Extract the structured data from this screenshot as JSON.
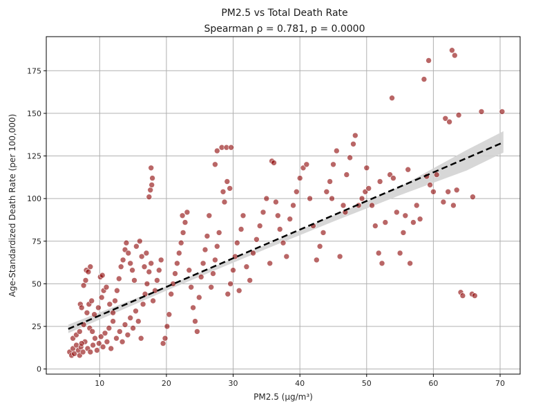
{
  "chart_data": {
    "type": "scatter",
    "title": "PM2.5 vs Total Death Rate",
    "subtitle": "Spearman ρ = 0.781, p = 0.0000",
    "xlabel": "PM2.5 (μg/m³)",
    "ylabel": "Age-Standardized Death Rate (per 100,000)",
    "xlim": [
      2,
      73
    ],
    "ylim": [
      -3,
      195
    ],
    "xticks": [
      10,
      20,
      30,
      40,
      50,
      60,
      70
    ],
    "yticks": [
      0,
      25,
      50,
      75,
      100,
      125,
      150,
      175
    ],
    "grid": true,
    "point_color": "#8b0000",
    "trend_color": "#000000",
    "band_color": "#d3d3d3",
    "trend_line": {
      "x": [
        5.3,
        70.5
      ],
      "y": [
        23.5,
        133
      ]
    },
    "confidence_band": {
      "x": [
        5.3,
        20,
        35,
        45,
        55,
        65,
        70.5
      ],
      "lower": [
        21.0,
        46.0,
        70.5,
        86.5,
        102.0,
        116.5,
        127.0
      ],
      "upper": [
        26.0,
        48.5,
        73.0,
        90.0,
        107.0,
        128.5,
        139.5
      ]
    },
    "series": [
      {
        "points": [
          [
            5.5,
            10
          ],
          [
            5.8,
            8
          ],
          [
            6.0,
            12
          ],
          [
            6.2,
            9
          ],
          [
            6.5,
            14
          ],
          [
            6.8,
            11
          ],
          [
            7.0,
            8
          ],
          [
            7.2,
            13
          ],
          [
            7.5,
            10
          ],
          [
            7.8,
            16
          ],
          [
            6.0,
            18
          ],
          [
            6.5,
            20
          ],
          [
            7.0,
            22
          ],
          [
            7.3,
            15
          ],
          [
            7.6,
            26
          ],
          [
            7.1,
            38
          ],
          [
            7.3,
            36
          ],
          [
            7.6,
            49
          ],
          [
            7.9,
            52
          ],
          [
            8.0,
            58
          ],
          [
            8.3,
            57
          ],
          [
            8.6,
            60
          ],
          [
            8.1,
            33
          ],
          [
            8.4,
            38
          ],
          [
            8.8,
            40
          ],
          [
            8.5,
            24
          ],
          [
            8.9,
            22
          ],
          [
            8.2,
            12
          ],
          [
            8.6,
            10
          ],
          [
            9.0,
            14
          ],
          [
            9.3,
            18
          ],
          [
            9.6,
            11
          ],
          [
            9.9,
            15
          ],
          [
            10.2,
            19
          ],
          [
            10.5,
            13
          ],
          [
            10.8,
            21
          ],
          [
            11.1,
            16
          ],
          [
            11.4,
            24
          ],
          [
            11.7,
            12
          ],
          [
            12.0,
            28
          ],
          [
            9.2,
            32
          ],
          [
            9.8,
            36
          ],
          [
            10.3,
            42
          ],
          [
            10.6,
            46
          ],
          [
            10.1,
            54
          ],
          [
            10.4,
            55
          ],
          [
            11.0,
            48
          ],
          [
            11.5,
            38
          ],
          [
            12.0,
            33
          ],
          [
            12.3,
            40
          ],
          [
            12.6,
            46
          ],
          [
            12.9,
            53
          ],
          [
            13.2,
            60
          ],
          [
            13.5,
            64
          ],
          [
            13.8,
            70
          ],
          [
            14.0,
            74
          ],
          [
            14.3,
            68
          ],
          [
            14.6,
            62
          ],
          [
            14.9,
            58
          ],
          [
            15.2,
            52
          ],
          [
            12.5,
            18
          ],
          [
            13.0,
            22
          ],
          [
            13.4,
            16
          ],
          [
            13.8,
            26
          ],
          [
            14.2,
            20
          ],
          [
            14.6,
            30
          ],
          [
            15.0,
            24
          ],
          [
            15.4,
            34
          ],
          [
            15.8,
            28
          ],
          [
            16.2,
            18
          ],
          [
            16.5,
            38
          ],
          [
            16.8,
            44
          ],
          [
            17.1,
            50
          ],
          [
            17.4,
            57
          ],
          [
            17.7,
            62
          ],
          [
            17.4,
            101
          ],
          [
            17.6,
            105
          ],
          [
            17.8,
            108
          ],
          [
            17.9,
            112
          ],
          [
            17.7,
            118
          ],
          [
            15.5,
            72
          ],
          [
            16.0,
            75
          ],
          [
            16.3,
            66
          ],
          [
            16.7,
            60
          ],
          [
            17.0,
            68
          ],
          [
            18.0,
            40
          ],
          [
            18.3,
            46
          ],
          [
            18.6,
            52
          ],
          [
            18.9,
            58
          ],
          [
            19.2,
            64
          ],
          [
            19.5,
            15
          ],
          [
            19.8,
            18
          ],
          [
            20.1,
            25
          ],
          [
            20.4,
            32
          ],
          [
            20.7,
            44
          ],
          [
            21.0,
            50
          ],
          [
            21.3,
            56
          ],
          [
            21.6,
            62
          ],
          [
            21.9,
            68
          ],
          [
            22.2,
            74
          ],
          [
            22.5,
            80
          ],
          [
            22.8,
            86
          ],
          [
            22.4,
            90
          ],
          [
            23.1,
            92
          ],
          [
            23.4,
            58
          ],
          [
            23.7,
            48
          ],
          [
            24.0,
            36
          ],
          [
            24.3,
            28
          ],
          [
            24.6,
            22
          ],
          [
            24.9,
            42
          ],
          [
            25.2,
            54
          ],
          [
            25.5,
            62
          ],
          [
            25.8,
            70
          ],
          [
            26.1,
            78
          ],
          [
            26.4,
            90
          ],
          [
            26.7,
            48
          ],
          [
            27.0,
            56
          ],
          [
            27.3,
            64
          ],
          [
            27.6,
            72
          ],
          [
            27.9,
            80
          ],
          [
            27.3,
            120
          ],
          [
            27.6,
            128
          ],
          [
            28.3,
            130
          ],
          [
            29.0,
            130
          ],
          [
            29.7,
            130
          ],
          [
            28.5,
            104
          ],
          [
            29.1,
            110
          ],
          [
            29.5,
            106
          ],
          [
            28.7,
            98
          ],
          [
            29.2,
            44
          ],
          [
            29.6,
            50
          ],
          [
            30.0,
            58
          ],
          [
            30.3,
            66
          ],
          [
            30.6,
            74
          ],
          [
            30.9,
            46
          ],
          [
            31.2,
            82
          ],
          [
            31.5,
            90
          ],
          [
            32.0,
            60
          ],
          [
            32.5,
            52
          ],
          [
            33.0,
            68
          ],
          [
            33.5,
            76
          ],
          [
            34.0,
            84
          ],
          [
            34.5,
            92
          ],
          [
            35.0,
            100
          ],
          [
            35.5,
            62
          ],
          [
            35.8,
            122
          ],
          [
            36.1,
            121
          ],
          [
            36.4,
            98
          ],
          [
            36.7,
            90
          ],
          [
            37.0,
            82
          ],
          [
            37.5,
            74
          ],
          [
            38.0,
            66
          ],
          [
            38.5,
            88
          ],
          [
            39.0,
            96
          ],
          [
            39.5,
            104
          ],
          [
            40.0,
            112
          ],
          [
            40.5,
            118
          ],
          [
            41.0,
            120
          ],
          [
            41.5,
            100
          ],
          [
            42.0,
            84
          ],
          [
            42.5,
            64
          ],
          [
            43.0,
            72
          ],
          [
            43.5,
            80
          ],
          [
            44.0,
            104
          ],
          [
            44.5,
            110
          ],
          [
            45.0,
            120
          ],
          [
            45.5,
            128
          ],
          [
            46.0,
            66
          ],
          [
            46.5,
            96
          ],
          [
            47.0,
            114
          ],
          [
            47.5,
            124
          ],
          [
            48.0,
            132
          ],
          [
            48.3,
            137
          ],
          [
            48.8,
            96
          ],
          [
            49.3,
            100
          ],
          [
            49.8,
            104
          ],
          [
            50.3,
            106
          ],
          [
            50.8,
            96
          ],
          [
            51.3,
            84
          ],
          [
            51.8,
            68
          ],
          [
            52.3,
            62
          ],
          [
            52.8,
            86
          ],
          [
            53.5,
            114
          ],
          [
            53.8,
            159
          ],
          [
            54.5,
            92
          ],
          [
            55.0,
            68
          ],
          [
            55.5,
            80
          ],
          [
            55.8,
            90
          ],
          [
            56.2,
            117
          ],
          [
            56.5,
            62
          ],
          [
            57.0,
            86
          ],
          [
            57.5,
            96
          ],
          [
            58.0,
            88
          ],
          [
            58.6,
            170
          ],
          [
            59.3,
            181
          ],
          [
            59.0,
            113
          ],
          [
            59.5,
            108
          ],
          [
            60.0,
            104
          ],
          [
            61.5,
            98
          ],
          [
            61.8,
            147
          ],
          [
            62.2,
            104
          ],
          [
            62.4,
            145
          ],
          [
            62.8,
            187
          ],
          [
            63.2,
            184
          ],
          [
            63.0,
            96
          ],
          [
            63.5,
            105
          ],
          [
            63.8,
            149
          ],
          [
            64.1,
            45
          ],
          [
            64.4,
            43
          ],
          [
            65.8,
            44
          ],
          [
            66.2,
            43
          ],
          [
            65.9,
            101
          ],
          [
            67.2,
            151
          ],
          [
            70.3,
            151
          ],
          [
            60.5,
            114
          ],
          [
            54.0,
            112
          ],
          [
            52.0,
            110
          ],
          [
            50.0,
            118
          ],
          [
            46.8,
            92
          ],
          [
            44.8,
            100
          ]
        ]
      }
    ]
  }
}
